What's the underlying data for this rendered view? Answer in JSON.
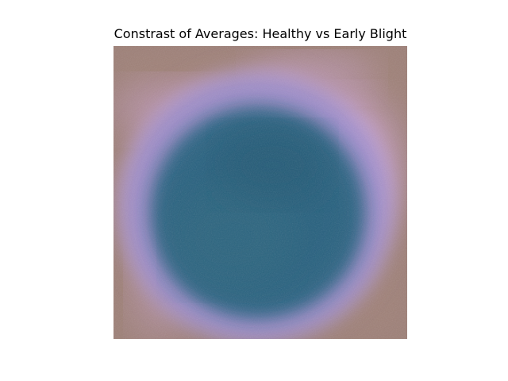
{
  "figure": {
    "title": "Constrast of Averages: Healthy vs Early Blight"
  },
  "image": {
    "description_colors": {
      "border": "#9a7c74",
      "ring": "#d7a9e6",
      "center": "#2d6681",
      "center_dark": "#235873"
    }
  }
}
